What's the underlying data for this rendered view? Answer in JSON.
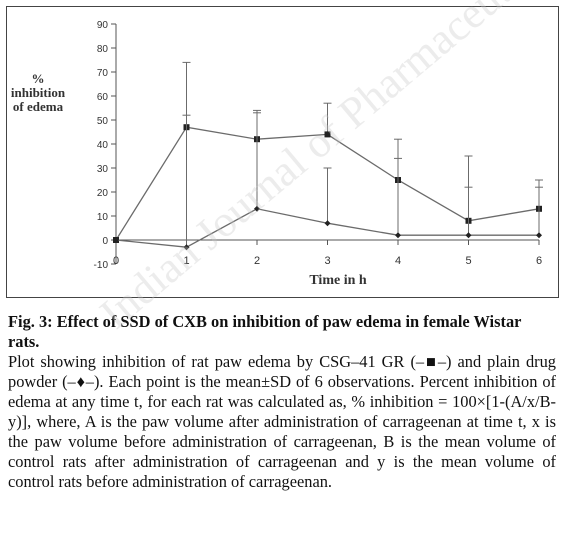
{
  "figure": {
    "caption_title": "Fig. 3: Effect of SSD of CXB on inhibition of paw edema in female Wistar rats.",
    "caption_body": "Plot showing inhibition of rat paw edema by CSG–41 GR (–■–) and plain drug powder (–♦–). Each point is the mean±SD of 6 observations. Percent inhibition of edema at any time t, for each rat was calculated as, % inhibition = 100×[1-(A/x/B-y)], where, A is the paw volume after administration of carrageenan at time t, x is the paw volume before administration of carrageenan, B is the mean volume of control rats after administration of carrageenan and y is the mean volume of control rats before administration of carrageenan."
  },
  "chart_data": {
    "type": "line",
    "xlabel": "Time in h",
    "ylabel_lines": [
      "%",
      "inhibition",
      "of edema"
    ],
    "x": [
      0,
      1,
      2,
      3,
      4,
      5,
      6
    ],
    "xlim": [
      0,
      6
    ],
    "ylim": [
      -10,
      90
    ],
    "y_ticks": [
      -10,
      0,
      10,
      20,
      30,
      40,
      50,
      60,
      70,
      80,
      90
    ],
    "x_ticks": [
      0,
      1,
      2,
      3,
      4,
      5,
      6
    ],
    "grid": false,
    "series": [
      {
        "marker": "square",
        "values": [
          0,
          47,
          42,
          44,
          25,
          8,
          13
        ],
        "errors": [
          0,
          27,
          12,
          13,
          17,
          27,
          12
        ]
      },
      {
        "marker": "diamond",
        "values": [
          0,
          -3,
          13,
          7,
          2,
          2,
          2
        ],
        "errors": [
          0,
          55,
          40,
          23,
          32,
          20,
          20
        ]
      }
    ],
    "colors": {
      "line": "#6b6b6b",
      "axis": "#555555",
      "text": "#333333"
    }
  },
  "watermark": {
    "text": "Indian Journal of Pharmaceutical Sciences"
  }
}
